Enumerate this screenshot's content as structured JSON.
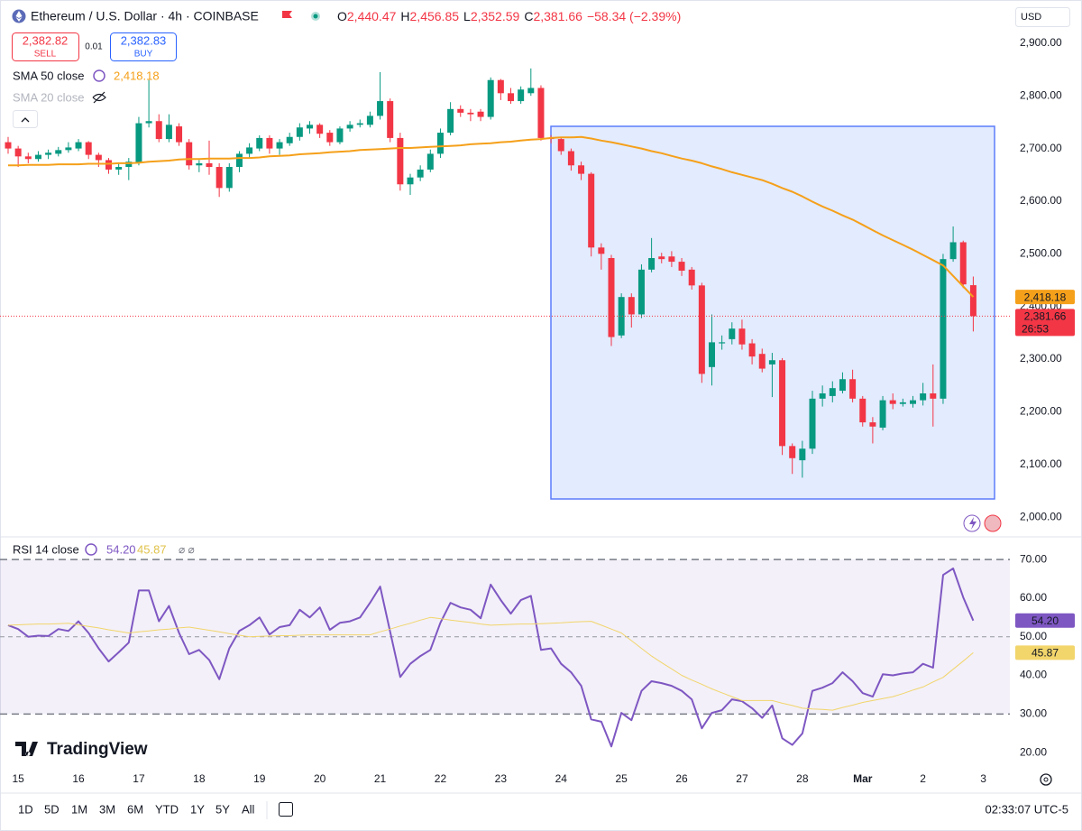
{
  "header": {
    "symbol": "Ethereum / U.S. Dollar · 4h · COINBASE",
    "ohlc": [
      {
        "label": "O",
        "value": "2,440.47"
      },
      {
        "label": "H",
        "value": "2,456.85"
      },
      {
        "label": "L",
        "value": "2,352.59"
      },
      {
        "label": "C",
        "value": "2,381.66"
      }
    ],
    "change": "−58.34 (−2.39%)",
    "sell": {
      "price": "2,382.82",
      "label": "SELL"
    },
    "spread": "0.01",
    "buy": {
      "price": "2,382.83",
      "label": "BUY"
    },
    "currency": "USD",
    "hidden_indicator": "SMA 20 close"
  },
  "logo": "TradingView",
  "timeframes": [
    "1D",
    "5D",
    "1M",
    "3M",
    "6M",
    "YTD",
    "1Y",
    "5Y",
    "All"
  ],
  "clock": "02:33:07 UTC-5",
  "chart_data": [
    {
      "type": "candlestick",
      "categories": [
        null,
        "15",
        null,
        null,
        null,
        null,
        null,
        "16",
        null,
        null,
        null,
        null,
        null,
        "17",
        null,
        null,
        null,
        null,
        null,
        "18",
        null,
        null,
        null,
        null,
        null,
        "19",
        null,
        null,
        null,
        null,
        null,
        "20",
        null,
        null,
        null,
        null,
        null,
        "21",
        null,
        null,
        null,
        null,
        null,
        "22",
        null,
        null,
        null,
        null,
        null,
        "23",
        null,
        null,
        null,
        null,
        null,
        "24",
        null,
        null,
        null,
        null,
        null,
        "25",
        null,
        null,
        null,
        null,
        null,
        "26",
        null,
        null,
        null,
        null,
        null,
        "27",
        null,
        null,
        null,
        null,
        null,
        "28",
        null,
        null,
        null,
        null,
        null,
        "Mar",
        null,
        null,
        null,
        null,
        null,
        "2",
        null,
        null,
        null,
        null,
        null,
        "3"
      ],
      "open": [
        2712,
        2700,
        2685,
        2680,
        2688,
        2690,
        2697,
        2700,
        2712,
        2688,
        2678,
        2660,
        2665,
        2672,
        2748,
        2752,
        2718,
        2742,
        2712,
        2668,
        2672,
        2665,
        2625,
        2665,
        2690,
        2700,
        2720,
        2700,
        2710,
        2722,
        2738,
        2745,
        2730,
        2712,
        2738,
        2745,
        2745,
        2762,
        2790,
        2720,
        2632,
        2645,
        2660,
        2690,
        2730,
        2775,
        2768,
        2770,
        2760,
        2830,
        2805,
        2790,
        2805,
        2815,
        2720,
        2718,
        2695,
        2668,
        2652,
        2512,
        2492,
        2345,
        2418,
        2385,
        2470,
        2495,
        2495,
        2485,
        2470,
        2440,
        2285,
        2330,
        2338,
        2358,
        2330,
        2310,
        2290,
        2298,
        2135,
        2108,
        2130,
        2225,
        2230,
        2240,
        2262,
        2225,
        2180,
        2170,
        2222,
        2215,
        2215,
        2222,
        2235,
        2225,
        2490,
        2522,
        2440.47,
        null
      ],
      "high": [
        2722,
        2705,
        2692,
        2695,
        2698,
        2703,
        2712,
        2718,
        2714,
        2692,
        2682,
        2672,
        2682,
        2760,
        2830,
        2765,
        2765,
        2748,
        2718,
        2678,
        2715,
        2672,
        2672,
        2695,
        2710,
        2725,
        2725,
        2718,
        2730,
        2748,
        2752,
        2748,
        2735,
        2742,
        2752,
        2755,
        2770,
        2845,
        2795,
        2730,
        2652,
        2668,
        2698,
        2738,
        2788,
        2782,
        2775,
        2775,
        2835,
        2832,
        2815,
        2818,
        2852,
        2820,
        2725,
        2722,
        2700,
        2675,
        2655,
        2520,
        2498,
        2425,
        2425,
        2480,
        2530,
        2502,
        2505,
        2492,
        2475,
        2445,
        2385,
        2345,
        2370,
        2375,
        2338,
        2320,
        2312,
        2302,
        2140,
        2145,
        2240,
        2250,
        2258,
        2275,
        2280,
        2230,
        2190,
        2230,
        2235,
        2225,
        2230,
        2255,
        2290,
        2500,
        2552,
        2525,
        2456.85,
        null
      ],
      "low": [
        2690,
        2665,
        2672,
        2675,
        2680,
        2685,
        2692,
        2695,
        2680,
        2665,
        2652,
        2650,
        2640,
        2668,
        2740,
        2712,
        2712,
        2705,
        2660,
        2655,
        2650,
        2608,
        2618,
        2655,
        2682,
        2695,
        2690,
        2688,
        2705,
        2715,
        2728,
        2720,
        2705,
        2708,
        2732,
        2740,
        2740,
        2755,
        2712,
        2620,
        2612,
        2638,
        2655,
        2682,
        2725,
        2760,
        2752,
        2752,
        2755,
        2792,
        2785,
        2785,
        2800,
        2715,
        2710,
        2688,
        2658,
        2640,
        2495,
        2470,
        2325,
        2340,
        2360,
        2378,
        2465,
        2482,
        2475,
        2458,
        2432,
        2255,
        2250,
        2318,
        2328,
        2318,
        2290,
        2275,
        2228,
        2118,
        2082,
        2075,
        2120,
        2210,
        2218,
        2235,
        2218,
        2172,
        2140,
        2165,
        2205,
        2210,
        2208,
        2212,
        2172,
        2215,
        2485,
        2435,
        2352.59,
        null
      ],
      "close": [
        2700,
        2685,
        2680,
        2688,
        2692,
        2697,
        2702,
        2712,
        2688,
        2678,
        2660,
        2665,
        2675,
        2748,
        2752,
        2718,
        2745,
        2712,
        2668,
        2672,
        2665,
        2625,
        2665,
        2690,
        2702,
        2720,
        2700,
        2712,
        2722,
        2740,
        2745,
        2728,
        2712,
        2738,
        2745,
        2748,
        2762,
        2790,
        2720,
        2632,
        2645,
        2660,
        2690,
        2730,
        2775,
        2768,
        2765,
        2760,
        2830,
        2805,
        2790,
        2812,
        2815,
        2720,
        2718,
        2695,
        2668,
        2652,
        2512,
        2500,
        2342,
        2418,
        2385,
        2470,
        2492,
        2490,
        2485,
        2468,
        2440,
        2272,
        2332,
        2332,
        2358,
        2328,
        2305,
        2282,
        2298,
        2135,
        2112,
        2130,
        2225,
        2235,
        2245,
        2262,
        2225,
        2180,
        2172,
        2222,
        2215,
        2218,
        2222,
        2235,
        2225,
        2490,
        2522,
        2442,
        2381.66,
        null
      ],
      "up_color": "#089981",
      "down_color": "#f23645",
      "last_label": "2,381.66",
      "countdown": "26:53",
      "ylim": [
        1966,
        2982
      ],
      "yticks": [
        {
          "value": 2000,
          "label": "2,000.00"
        },
        {
          "value": 2100,
          "label": "2,100.00"
        },
        {
          "value": 2200,
          "label": "2,200.00"
        },
        {
          "value": 2300,
          "label": "2,300.00"
        },
        {
          "value": 2400,
          "label": "2,400.00"
        },
        {
          "value": 2500,
          "label": "2,500.00"
        },
        {
          "value": 2600,
          "label": "2,600.00"
        },
        {
          "value": 2700,
          "label": "2,700.00"
        },
        {
          "value": 2800,
          "label": "2,800.00"
        },
        {
          "value": 2900,
          "label": "2,900.00"
        }
      ],
      "grid": false,
      "series": [
        {
          "name": "SMA 50 close",
          "color": "#f5a01a",
          "last_label": "2,418.18",
          "values": [
            2668,
            2668,
            2669,
            2669,
            2669,
            2670,
            2670,
            2670,
            2671,
            2671,
            2671,
            2672,
            2672,
            2673,
            2675,
            2676,
            2677,
            2679,
            2680,
            2680,
            2681,
            2681,
            2681,
            2682,
            2682,
            2683,
            2685,
            2686,
            2687,
            2689,
            2690,
            2691,
            2693,
            2694,
            2695,
            2697,
            2698,
            2699,
            2700,
            2701,
            2701,
            2702,
            2703,
            2704,
            2705,
            2706,
            2708,
            2709,
            2710,
            2712,
            2713,
            2715,
            2717,
            2718,
            2720,
            2721,
            2721,
            2722,
            2719,
            2715,
            2712,
            2708,
            2704,
            2700,
            2695,
            2691,
            2686,
            2681,
            2677,
            2672,
            2666,
            2661,
            2655,
            2650,
            2645,
            2640,
            2633,
            2625,
            2618,
            2609,
            2599,
            2590,
            2582,
            2573,
            2565,
            2555,
            2545,
            2535,
            2526,
            2517,
            2508,
            2498,
            2488,
            2478,
            2458,
            2438,
            2418.18,
            null
          ]
        }
      ]
    },
    {
      "type": "line",
      "title": "RSI 14 close",
      "ylim": [
        16.3,
        74.7
      ],
      "yticks": [
        {
          "value": 20,
          "label": "20.00"
        },
        {
          "value": 30,
          "label": "30.00"
        },
        {
          "value": 40,
          "label": "40.00"
        },
        {
          "value": 50,
          "label": "50.00"
        },
        {
          "value": 60,
          "label": "60.00"
        },
        {
          "value": 70,
          "label": "70.00"
        }
      ],
      "levels": [
        70,
        50,
        30
      ],
      "grid": false,
      "series": [
        {
          "color": "#7e57c2",
          "last_label": "54.20",
          "values": [
            53,
            52,
            50,
            50.3,
            50.2,
            52,
            51.5,
            54,
            51,
            47,
            43.6,
            46,
            48.5,
            62,
            62,
            54,
            58,
            51,
            45.5,
            46.6,
            44,
            39,
            47,
            51.5,
            53,
            55,
            50.6,
            52.5,
            53,
            57,
            55,
            57.6,
            51.8,
            53.6,
            54,
            55,
            58.8,
            63,
            51.3,
            39.6,
            43,
            45,
            46.6,
            53.6,
            58.8,
            57.6,
            57,
            54.8,
            63.5,
            59.5,
            56,
            59.5,
            60.6,
            46.6,
            47,
            43,
            40.8,
            37.3,
            28.6,
            28,
            21.6,
            30.3,
            28.4,
            36,
            38.5,
            38,
            37.3,
            36,
            33.8,
            26.3,
            30.3,
            31,
            33.8,
            33.3,
            31.5,
            29,
            32.2,
            23.7,
            22,
            25,
            36,
            36.8,
            38,
            40.8,
            38.5,
            35.4,
            34.5,
            40.3,
            40,
            40.5,
            40.8,
            43,
            42,
            66,
            67.7,
            60.2,
            54.2,
            null
          ]
        },
        {
          "color": "#f2d56b",
          "last_label": "45.87",
          "tag_text_color": "#131722",
          "values": [
            53,
            53.1,
            53.2,
            53.3,
            53.3,
            53.4,
            53.5,
            53.1,
            52.7,
            52.3,
            51.8,
            51.4,
            51,
            51.3,
            51.5,
            51.8,
            52,
            52.3,
            52.5,
            52.1,
            51.7,
            51.3,
            50.8,
            50.4,
            50,
            50.1,
            50.2,
            50.3,
            50.3,
            50.4,
            50.5,
            50.5,
            50.5,
            50.5,
            50.5,
            50.5,
            50.5,
            51.3,
            52,
            52.8,
            53.5,
            54.3,
            55,
            54.7,
            54.3,
            54,
            53.7,
            53.3,
            53,
            53.1,
            53.2,
            53.3,
            53.3,
            53.4,
            53.5,
            53.6,
            53.8,
            53.9,
            54,
            53,
            52,
            51,
            49,
            47,
            45,
            43.3,
            41.7,
            40,
            38.8,
            37.7,
            36.5,
            35.5,
            34.5,
            33.5,
            33.5,
            33.5,
            33.5,
            32.8,
            32.2,
            31.5,
            31.3,
            31.2,
            31,
            31.7,
            32.3,
            33,
            33.5,
            34,
            34.5,
            35.3,
            36.2,
            37,
            38.3,
            39.5,
            41.6,
            43.7,
            45.87,
            null
          ]
        }
      ]
    }
  ]
}
